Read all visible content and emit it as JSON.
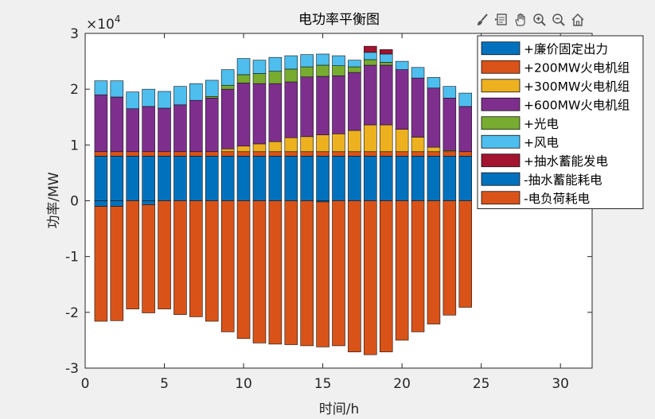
{
  "window": {
    "title": "电功率平衡图"
  },
  "toolbar": {
    "icons": [
      "brush-icon",
      "data-tip-icon",
      "pan-hand-icon",
      "zoom-in-icon",
      "zoom-out-icon",
      "home-icon"
    ]
  },
  "chart_data": {
    "type": "bar",
    "stacked": true,
    "title": "电功率平衡图",
    "xlabel": "时间/h",
    "ylabel": "功率/MW",
    "exponent_label": "×10",
    "exponent": "4",
    "xlim": [
      0,
      32
    ],
    "ylim": [
      -3,
      3
    ],
    "xticks": [
      0,
      5,
      10,
      15,
      20,
      25,
      30
    ],
    "yticks": [
      -3,
      -2,
      -1,
      0,
      1,
      2,
      3
    ],
    "ytick_labels": [
      "-3",
      "-2",
      "-1",
      "0",
      "1",
      "2",
      "3"
    ],
    "units_scale": 10000,
    "grid": false,
    "legend_position": "top-right",
    "x": [
      1,
      2,
      3,
      4,
      5,
      6,
      7,
      8,
      9,
      10,
      11,
      12,
      13,
      14,
      15,
      16,
      17,
      18,
      19,
      20,
      21,
      22,
      23,
      24
    ],
    "series": [
      {
        "name": "+廉价固定出力",
        "color": "#0072BD",
        "side": "positive",
        "values": [
          0.8,
          0.8,
          0.8,
          0.8,
          0.8,
          0.8,
          0.8,
          0.8,
          0.8,
          0.8,
          0.8,
          0.8,
          0.8,
          0.8,
          0.8,
          0.8,
          0.8,
          0.8,
          0.8,
          0.8,
          0.8,
          0.8,
          0.8,
          0.8
        ]
      },
      {
        "name": "+200MW火电机组",
        "color": "#D95319",
        "side": "positive",
        "values": [
          0.08,
          0.08,
          0.08,
          0.08,
          0.08,
          0.08,
          0.08,
          0.08,
          0.08,
          0.08,
          0.08,
          0.08,
          0.08,
          0.08,
          0.08,
          0.08,
          0.08,
          0.08,
          0.08,
          0.08,
          0.08,
          0.08,
          0.08,
          0.08
        ]
      },
      {
        "name": "+300MW火电机组",
        "color": "#EDB120",
        "side": "positive",
        "values": [
          0,
          0,
          0,
          0,
          0,
          0,
          0,
          0,
          0.05,
          0.1,
          0.14,
          0.18,
          0.25,
          0.27,
          0.3,
          0.32,
          0.38,
          0.48,
          0.48,
          0.4,
          0.26,
          0.08,
          0.02,
          0
        ]
      },
      {
        "name": "+600MW火电机组",
        "color": "#7E2F8E",
        "side": "positive",
        "values": [
          1.02,
          0.98,
          0.77,
          0.81,
          0.78,
          0.84,
          0.92,
          0.96,
          1.07,
          1.13,
          1.08,
          1.04,
          1.0,
          1.07,
          1.05,
          1.04,
          1.04,
          1.07,
          1.07,
          1.07,
          1.06,
          1.06,
          0.94,
          0.81
        ]
      },
      {
        "name": "+光电",
        "color": "#77AC30",
        "side": "positive",
        "values": [
          0,
          0,
          0,
          0,
          0,
          0,
          0,
          0.03,
          0.07,
          0.15,
          0.18,
          0.22,
          0.23,
          0.18,
          0.2,
          0.18,
          0.1,
          0.1,
          0.05,
          0,
          0,
          0,
          0,
          0
        ]
      },
      {
        "name": "+风电",
        "color": "#4DBEEE",
        "side": "positive",
        "values": [
          0.25,
          0.29,
          0.3,
          0.31,
          0.3,
          0.33,
          0.3,
          0.29,
          0.28,
          0.29,
          0.24,
          0.25,
          0.24,
          0.22,
          0.2,
          0.18,
          0.12,
          0.13,
          0.15,
          0.15,
          0.19,
          0.19,
          0.21,
          0.24
        ]
      },
      {
        "name": "+抽水蓄能发电",
        "color": "#A2142F",
        "side": "positive",
        "values": [
          0,
          0,
          0,
          0,
          0,
          0,
          0,
          0,
          0,
          0,
          0,
          0,
          0,
          0,
          0,
          0,
          0,
          0.11,
          0.08,
          0,
          0,
          0,
          0,
          0
        ]
      },
      {
        "name": "-抽水蓄能耗电",
        "color": "#0072BD",
        "side": "negative",
        "values": [
          -0.1,
          -0.1,
          0,
          -0.07,
          0,
          0,
          0,
          0,
          0,
          0,
          0,
          0,
          0,
          0,
          -0.02,
          0,
          0,
          0,
          0,
          0,
          0,
          0,
          0,
          0
        ]
      },
      {
        "name": "-电负荷耗电",
        "color": "#D95319",
        "side": "negative",
        "values": [
          -2.06,
          -2.05,
          -1.94,
          -1.94,
          -1.94,
          -2.04,
          -2.08,
          -2.16,
          -2.35,
          -2.47,
          -2.55,
          -2.57,
          -2.58,
          -2.6,
          -2.6,
          -2.6,
          -2.71,
          -2.76,
          -2.71,
          -2.5,
          -2.35,
          -2.21,
          -2.05,
          -1.91
        ]
      }
    ]
  }
}
